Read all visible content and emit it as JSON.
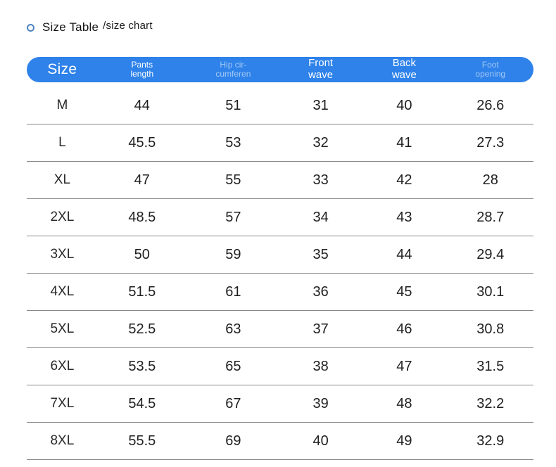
{
  "chart_data": {
    "type": "table",
    "title": "Size Table",
    "subtitle": "/size chart",
    "columns": [
      {
        "id": "size",
        "lines": [
          "Size"
        ]
      },
      {
        "id": "pants-length",
        "lines": [
          "Pants",
          "length"
        ]
      },
      {
        "id": "hip-circumference",
        "lines": [
          "Hip cir-",
          "cumferen"
        ]
      },
      {
        "id": "front-wave",
        "lines": [
          "Front",
          "wave"
        ]
      },
      {
        "id": "back-wave",
        "lines": [
          "Back",
          "wave"
        ]
      },
      {
        "id": "foot-opening",
        "lines": [
          "Foot",
          "opening"
        ]
      }
    ],
    "rows": [
      [
        "M",
        "44",
        "51",
        "31",
        "40",
        "26.6"
      ],
      [
        "L",
        "45.5",
        "53",
        "32",
        "41",
        "27.3"
      ],
      [
        "XL",
        "47",
        "55",
        "33",
        "42",
        "28"
      ],
      [
        "2XL",
        "48.5",
        "57",
        "34",
        "43",
        "28.7"
      ],
      [
        "3XL",
        "50",
        "59",
        "35",
        "44",
        "29.4"
      ],
      [
        "4XL",
        "51.5",
        "61",
        "36",
        "45",
        "30.1"
      ],
      [
        "5XL",
        "52.5",
        "63",
        "37",
        "46",
        "30.8"
      ],
      [
        "6XL",
        "53.5",
        "65",
        "38",
        "47",
        "31.5"
      ],
      [
        "7XL",
        "54.5",
        "67",
        "39",
        "48",
        "32.2"
      ],
      [
        "8XL",
        "55.5",
        "69",
        "40",
        "49",
        "32.9"
      ]
    ]
  },
  "colors": {
    "header_bg": "#2e82e9",
    "header_text": "#ffffff",
    "header_text_muted": "rgba(255,255,255,0.55)",
    "divider": "#888888",
    "body_text": "#1f1f1f",
    "bullet_ring": "#4f86c0"
  }
}
